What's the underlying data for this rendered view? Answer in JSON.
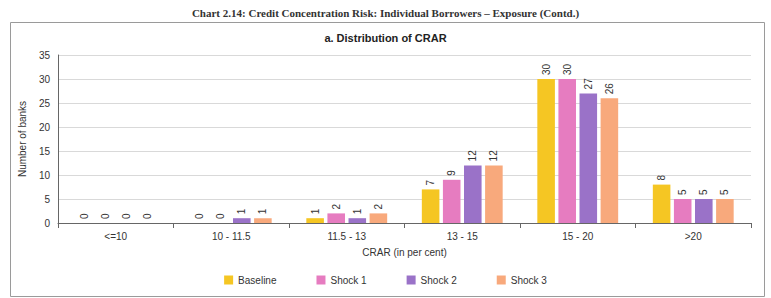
{
  "chart_data": {
    "type": "bar",
    "title": "Chart 2.14: Credit Concentration Risk: Individual Borrowers – Exposure (Contd.)",
    "subtitle": "a. Distribution of CRAR",
    "xlabel": "CRAR (in per cent)",
    "ylabel": "Number of banks",
    "categories": [
      "<=10",
      "10 - 11.5",
      "11.5 - 13",
      "13 - 15",
      "15 - 20",
      ">20"
    ],
    "series": [
      {
        "name": "Baseline",
        "color": "#f5c623",
        "values": [
          0,
          0,
          1,
          7,
          30,
          8
        ]
      },
      {
        "name": "Shock 1",
        "color": "#e67cc0",
        "values": [
          0,
          0,
          2,
          9,
          30,
          5
        ]
      },
      {
        "name": "Shock 2",
        "color": "#9a72c8",
        "values": [
          0,
          1,
          1,
          12,
          27,
          5
        ]
      },
      {
        "name": "Shock 3",
        "color": "#f8a97c",
        "values": [
          0,
          1,
          2,
          12,
          26,
          5
        ]
      }
    ],
    "ylim": [
      0,
      35
    ],
    "yticks": [
      0,
      5,
      10,
      15,
      20,
      25,
      30,
      35
    ],
    "grid": true,
    "legend": "bottom",
    "data_labels": true
  }
}
